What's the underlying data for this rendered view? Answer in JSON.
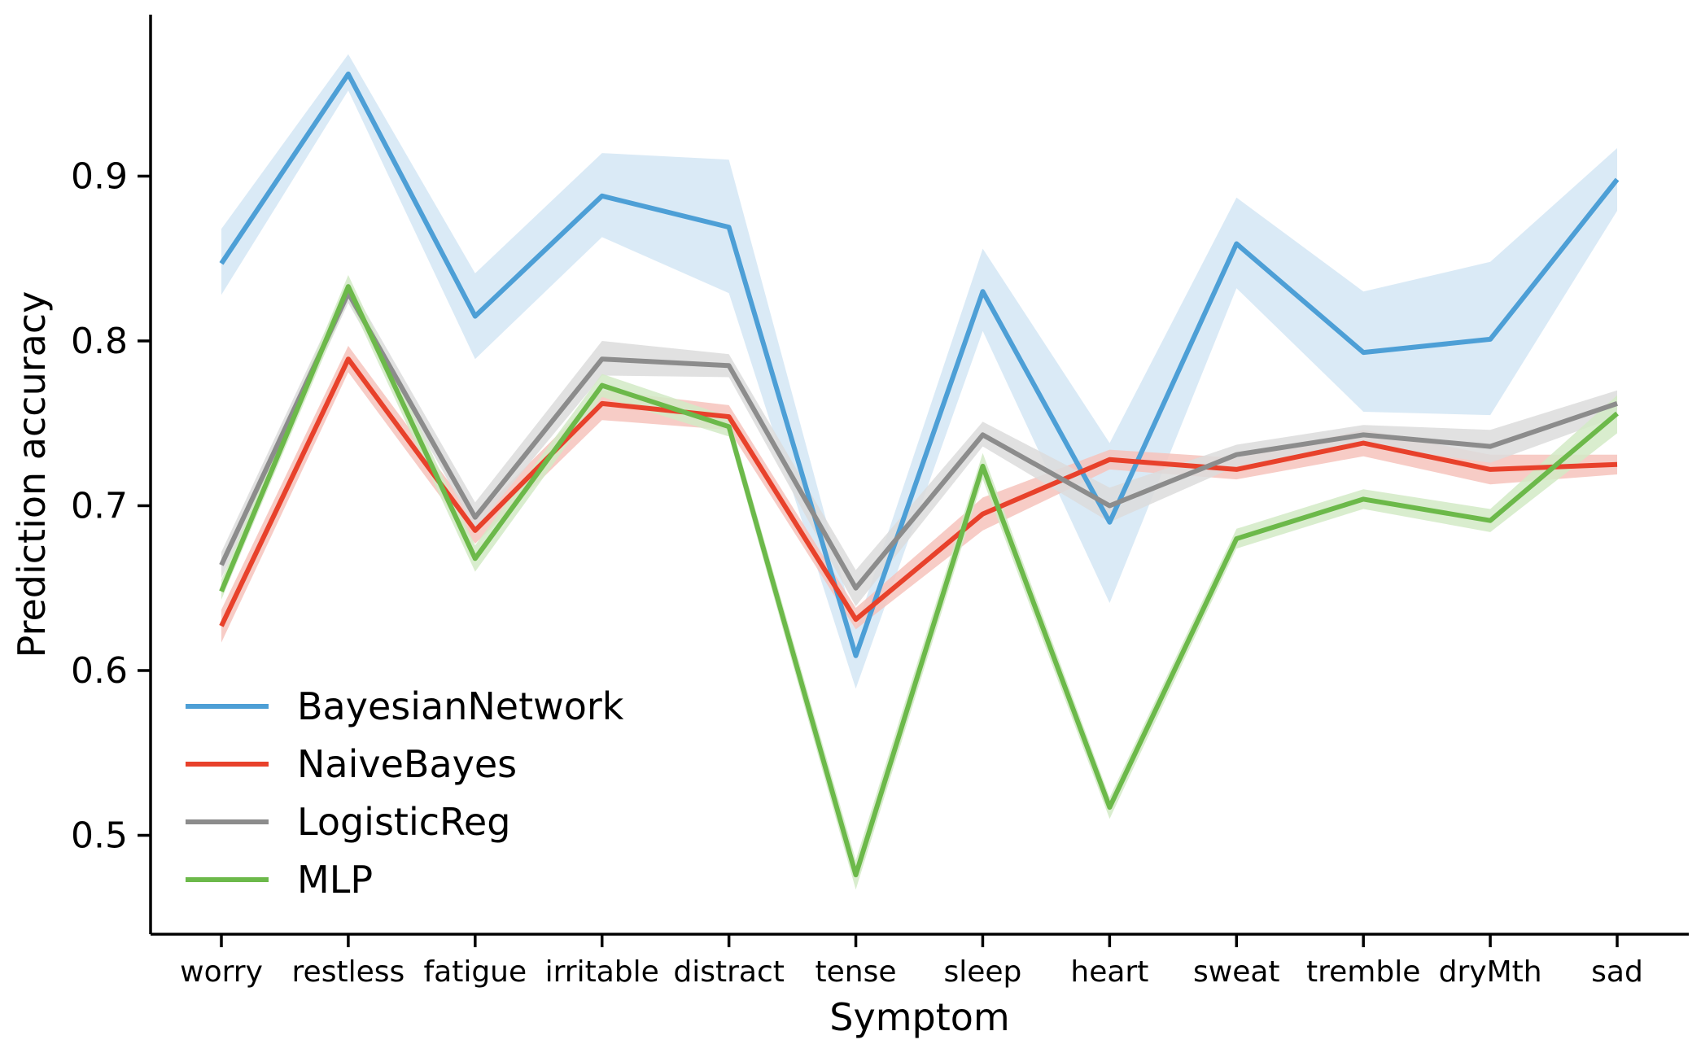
{
  "chart_data": {
    "type": "line",
    "title": "",
    "xlabel": "Symptom",
    "ylabel": "Prediction accuracy",
    "categories": [
      "worry",
      "restless",
      "fatigue",
      "irritable",
      "distract",
      "tense",
      "sleep",
      "heart",
      "sweat",
      "tremble",
      "dryMth",
      "sad"
    ],
    "ylim": [
      0.44,
      0.998
    ],
    "yticks": [
      0.5,
      0.6,
      0.7,
      0.8,
      0.9
    ],
    "ytick_labels": [
      "0.5",
      "0.6",
      "0.7",
      "0.8",
      "0.9"
    ],
    "grid": false,
    "legend_position": "lower-left",
    "series": [
      {
        "name": "BayesianNetwork",
        "color": "#4d9fd6",
        "band_color": "#d4e6f4",
        "values": [
          0.847,
          0.962,
          0.815,
          0.888,
          0.869,
          0.609,
          0.83,
          0.69,
          0.859,
          0.793,
          0.801,
          0.898
        ],
        "lower": [
          0.828,
          0.952,
          0.789,
          0.863,
          0.829,
          0.589,
          0.806,
          0.641,
          0.832,
          0.757,
          0.755,
          0.879
        ],
        "upper": [
          0.868,
          0.974,
          0.841,
          0.914,
          0.91,
          0.625,
          0.856,
          0.738,
          0.887,
          0.83,
          0.848,
          0.917
        ]
      },
      {
        "name": "NaiveBayes",
        "color": "#e8412b",
        "band_color": "#f6c3bc",
        "values": [
          0.627,
          0.789,
          0.685,
          0.762,
          0.754,
          0.631,
          0.695,
          0.728,
          0.722,
          0.738,
          0.722,
          0.725
        ],
        "lower": [
          0.617,
          0.781,
          0.677,
          0.752,
          0.746,
          0.625,
          0.685,
          0.722,
          0.716,
          0.73,
          0.713,
          0.719
        ],
        "upper": [
          0.637,
          0.797,
          0.693,
          0.77,
          0.761,
          0.638,
          0.705,
          0.734,
          0.729,
          0.746,
          0.731,
          0.731
        ]
      },
      {
        "name": "LogisticReg",
        "color": "#8c8c8c",
        "band_color": "#dcdcdc",
        "values": [
          0.664,
          0.829,
          0.693,
          0.789,
          0.785,
          0.65,
          0.743,
          0.7,
          0.731,
          0.743,
          0.736,
          0.762
        ],
        "lower": [
          0.656,
          0.823,
          0.686,
          0.779,
          0.778,
          0.639,
          0.736,
          0.69,
          0.724,
          0.737,
          0.726,
          0.754
        ],
        "upper": [
          0.672,
          0.836,
          0.702,
          0.8,
          0.792,
          0.661,
          0.751,
          0.711,
          0.737,
          0.749,
          0.746,
          0.77
        ]
      },
      {
        "name": "MLP",
        "color": "#6cb94a",
        "band_color": "#d2eac6",
        "values": [
          0.648,
          0.833,
          0.668,
          0.773,
          0.748,
          0.476,
          0.724,
          0.517,
          0.68,
          0.704,
          0.691,
          0.756
        ],
        "lower": [
          0.643,
          0.826,
          0.66,
          0.766,
          0.742,
          0.467,
          0.716,
          0.51,
          0.674,
          0.698,
          0.684,
          0.744
        ],
        "upper": [
          0.655,
          0.84,
          0.676,
          0.78,
          0.754,
          0.485,
          0.732,
          0.523,
          0.686,
          0.71,
          0.698,
          0.767
        ]
      }
    ]
  }
}
